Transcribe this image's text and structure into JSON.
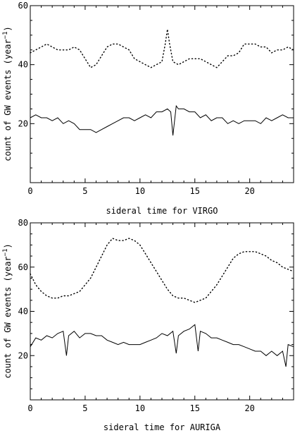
{
  "chart_data": [
    {
      "type": "line",
      "xlabel": "sideral time for VIRGO",
      "ylabel": "count of GW events (year",
      "ylabel_sup": "−1",
      "ylabel_close": ")",
      "xlim": [
        0,
        24
      ],
      "ylim": [
        0,
        60
      ],
      "xticks": [
        0,
        5,
        10,
        15,
        20
      ],
      "yticks": [
        20,
        40,
        60
      ],
      "grid": false,
      "series": [
        {
          "style": "dotted",
          "x": [
            0,
            0.5,
            1,
            1.5,
            2,
            2.5,
            3,
            3.5,
            4,
            4.5,
            5,
            5.5,
            6,
            6.5,
            7,
            7.5,
            8,
            8.5,
            9,
            9.5,
            10,
            10.5,
            11,
            11.5,
            12,
            12.3,
            12.5,
            12.7,
            13,
            13.5,
            14,
            14.5,
            15,
            15.5,
            16,
            16.5,
            17,
            17.5,
            18,
            18.5,
            19,
            19.5,
            20,
            20.5,
            21,
            21.5,
            22,
            22.5,
            23,
            23.5,
            24
          ],
          "y": [
            44,
            45,
            46,
            47,
            46,
            45,
            45,
            45,
            46,
            45,
            42,
            39,
            40,
            43,
            46,
            47,
            47,
            46,
            45,
            42,
            41,
            40,
            39,
            40,
            41,
            47,
            52,
            47,
            41,
            40,
            41,
            42,
            42,
            42,
            41,
            40,
            39,
            41,
            43,
            43,
            44,
            47,
            47,
            47,
            46,
            46,
            44,
            45,
            45,
            46,
            45
          ]
        },
        {
          "style": "solid",
          "x": [
            0,
            0.5,
            1,
            1.5,
            2,
            2.5,
            3,
            3.5,
            4,
            4.5,
            5,
            5.5,
            6,
            6.5,
            7,
            7.5,
            8,
            8.5,
            9,
            9.5,
            10,
            10.5,
            11,
            11.5,
            12,
            12.5,
            12.8,
            13,
            13.3,
            13.5,
            14,
            14.5,
            15,
            15.5,
            16,
            16.5,
            17,
            17.5,
            18,
            18.5,
            19,
            19.5,
            20,
            20.5,
            21,
            21.5,
            22,
            22.5,
            23,
            23.5,
            24
          ],
          "y": [
            22,
            23,
            22,
            22,
            21,
            22,
            20,
            21,
            20,
            18,
            18,
            18,
            17,
            18,
            19,
            20,
            21,
            22,
            22,
            21,
            22,
            23,
            22,
            24,
            24,
            25,
            24,
            16,
            26,
            25,
            25,
            24,
            24,
            22,
            23,
            21,
            22,
            22,
            20,
            21,
            20,
            21,
            21,
            21,
            20,
            22,
            21,
            22,
            23,
            22,
            22
          ]
        }
      ]
    },
    {
      "type": "line",
      "xlabel": "sideral time for AURIGA",
      "ylabel": "count of GW events (year",
      "ylabel_sup": "−1",
      "ylabel_close": ")",
      "xlim": [
        0,
        24
      ],
      "ylim": [
        0,
        80
      ],
      "xticks": [
        0,
        5,
        10,
        15,
        20
      ],
      "yticks": [
        20,
        40,
        60,
        80
      ],
      "grid": false,
      "series": [
        {
          "style": "dotted",
          "x": [
            0,
            0.5,
            1,
            1.5,
            2,
            2.5,
            3,
            3.5,
            4,
            4.5,
            5,
            5.5,
            6,
            6.5,
            7,
            7.5,
            8,
            8.5,
            9,
            9.5,
            10,
            10.5,
            11,
            11.5,
            12,
            12.5,
            13,
            13.5,
            14,
            14.5,
            15,
            15.5,
            16,
            16.5,
            17,
            17.5,
            18,
            18.5,
            19,
            19.5,
            20,
            20.5,
            21,
            21.5,
            22,
            22.5,
            23,
            23.5,
            24
          ],
          "y": [
            57,
            52,
            49,
            47,
            46,
            46,
            47,
            47,
            48,
            49,
            52,
            55,
            60,
            65,
            70,
            73,
            72,
            72,
            73,
            72,
            70,
            66,
            62,
            58,
            54,
            50,
            47,
            46,
            46,
            45,
            44,
            45,
            46,
            49,
            52,
            56,
            60,
            64,
            66,
            67,
            67,
            67,
            66,
            65,
            63,
            62,
            60,
            59,
            58
          ]
        },
        {
          "style": "solid",
          "x": [
            0,
            0.5,
            1,
            1.5,
            2,
            2.5,
            3,
            3.3,
            3.5,
            4,
            4.5,
            5,
            5.5,
            6,
            6.5,
            7,
            7.5,
            8,
            8.5,
            9,
            9.5,
            10,
            10.5,
            11,
            11.5,
            12,
            12.5,
            13,
            13.3,
            13.5,
            14,
            14.5,
            15,
            15.3,
            15.5,
            16,
            16.5,
            17,
            17.5,
            18,
            18.5,
            19,
            19.5,
            20,
            20.5,
            21,
            21.5,
            22,
            22.5,
            23,
            23.3,
            23.5,
            24
          ],
          "y": [
            24,
            28,
            27,
            29,
            28,
            30,
            31,
            20,
            29,
            31,
            28,
            30,
            30,
            29,
            29,
            27,
            26,
            25,
            26,
            25,
            25,
            25,
            26,
            27,
            28,
            30,
            29,
            31,
            21,
            29,
            31,
            32,
            34,
            22,
            31,
            30,
            28,
            28,
            27,
            26,
            25,
            25,
            24,
            23,
            22,
            22,
            20,
            22,
            20,
            22,
            15,
            25,
            24
          ]
        }
      ]
    }
  ]
}
